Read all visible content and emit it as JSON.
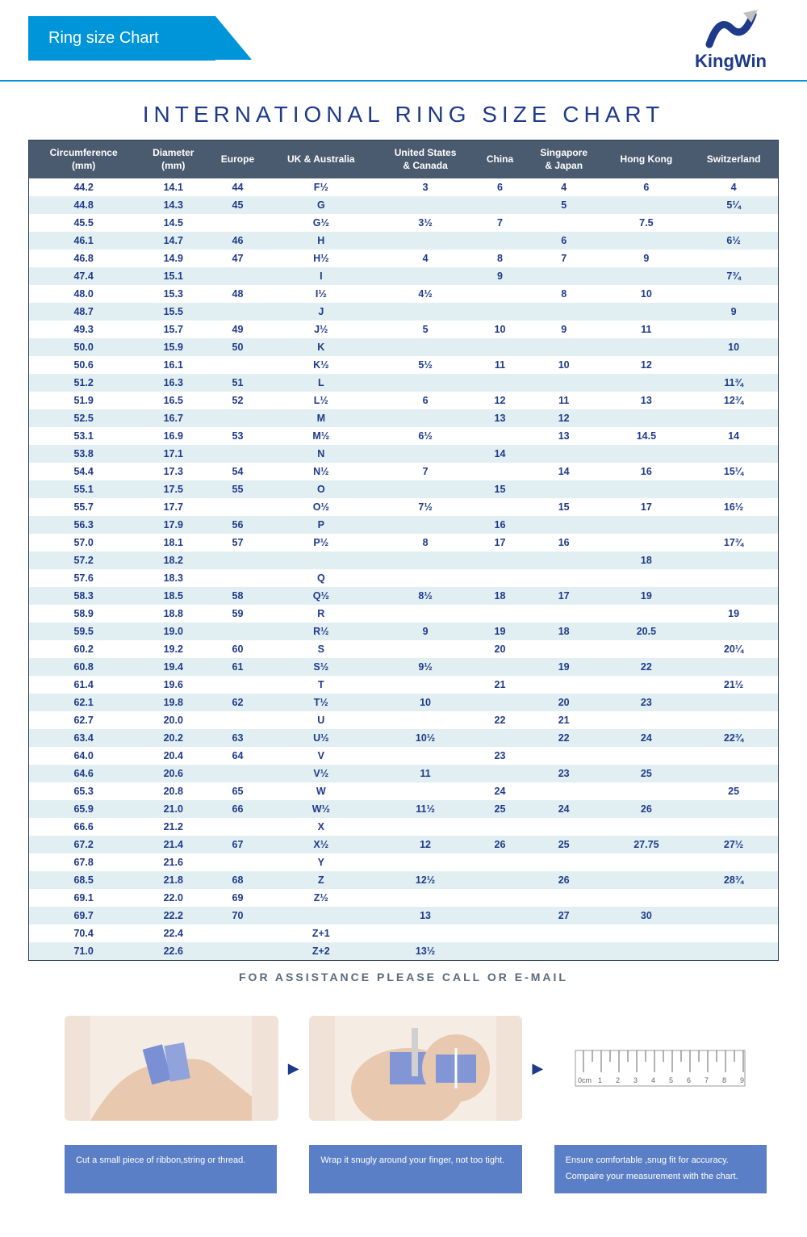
{
  "header": {
    "banner_text": "Ring size Chart",
    "logo_text": "KingWin"
  },
  "title": "INTERNATIONAL RING SIZE CHART",
  "table": {
    "columns": [
      "Circumference (mm)",
      "Diameter (mm)",
      "Europe",
      "UK & Australia",
      "United States & Canada",
      "China",
      "Singapore & Japan",
      "Hong Kong",
      "Switzerland"
    ],
    "rows": [
      [
        "44.2",
        "14.1",
        "44",
        "F½",
        "3",
        "6",
        "4",
        "6",
        "4"
      ],
      [
        "44.8",
        "14.3",
        "45",
        "G",
        "",
        "",
        "5",
        "",
        "5¼"
      ],
      [
        "45.5",
        "14.5",
        "",
        "G½",
        "3½",
        "7",
        "",
        "7.5",
        ""
      ],
      [
        "46.1",
        "14.7",
        "46",
        "H",
        "",
        "",
        "6",
        "",
        "6½"
      ],
      [
        "46.8",
        "14.9",
        "47",
        "H½",
        "4",
        "8",
        "7",
        "9",
        ""
      ],
      [
        "47.4",
        "15.1",
        "",
        "I",
        "",
        "9",
        "",
        "",
        "7¾"
      ],
      [
        "48.0",
        "15.3",
        "48",
        "I½",
        "4½",
        "",
        "8",
        "10",
        ""
      ],
      [
        "48.7",
        "15.5",
        "",
        "J",
        "",
        "",
        "",
        "",
        "9"
      ],
      [
        "49.3",
        "15.7",
        "49",
        "J½",
        "5",
        "10",
        "9",
        "11",
        ""
      ],
      [
        "50.0",
        "15.9",
        "50",
        "K",
        "",
        "",
        "",
        "",
        "10"
      ],
      [
        "50.6",
        "16.1",
        "",
        "K½",
        "5½",
        "11",
        "10",
        "12",
        ""
      ],
      [
        "51.2",
        "16.3",
        "51",
        "L",
        "",
        "",
        "",
        "",
        "11¾"
      ],
      [
        "51.9",
        "16.5",
        "52",
        "L½",
        "6",
        "12",
        "11",
        "13",
        "12¾"
      ],
      [
        "52.5",
        "16.7",
        "",
        "M",
        "",
        "13",
        "12",
        "",
        ""
      ],
      [
        "53.1",
        "16.9",
        "53",
        "M½",
        "6½",
        "",
        "13",
        "14.5",
        "14"
      ],
      [
        "53.8",
        "17.1",
        "",
        "N",
        "",
        "14",
        "",
        "",
        ""
      ],
      [
        "54.4",
        "17.3",
        "54",
        "N½",
        "7",
        "",
        "14",
        "16",
        "15¼"
      ],
      [
        "55.1",
        "17.5",
        "55",
        "O",
        "",
        "15",
        "",
        "",
        ""
      ],
      [
        "55.7",
        "17.7",
        "",
        "O½",
        "7½",
        "",
        "15",
        "17",
        "16½"
      ],
      [
        "56.3",
        "17.9",
        "56",
        "P",
        "",
        "16",
        "",
        "",
        ""
      ],
      [
        "57.0",
        "18.1",
        "57",
        "P½",
        "8",
        "17",
        "16",
        "",
        "17¾"
      ],
      [
        "57.2",
        "18.2",
        "",
        "",
        "",
        "",
        "",
        "18",
        ""
      ],
      [
        "57.6",
        "18.3",
        "",
        "Q",
        "",
        "",
        "",
        "",
        ""
      ],
      [
        "58.3",
        "18.5",
        "58",
        "Q½",
        "8½",
        "18",
        "17",
        "19",
        ""
      ],
      [
        "58.9",
        "18.8",
        "59",
        "R",
        "",
        "",
        "",
        "",
        "19"
      ],
      [
        "59.5",
        "19.0",
        "",
        "R½",
        "9",
        "19",
        "18",
        "20.5",
        ""
      ],
      [
        "60.2",
        "19.2",
        "60",
        "S",
        "",
        "20",
        "",
        "",
        "20¼"
      ],
      [
        "60.8",
        "19.4",
        "61",
        "S½",
        "9½",
        "",
        "19",
        "22",
        ""
      ],
      [
        "61.4",
        "19.6",
        "",
        "T",
        "",
        "21",
        "",
        "",
        "21½"
      ],
      [
        "62.1",
        "19.8",
        "62",
        "T½",
        "10",
        "",
        "20",
        "23",
        ""
      ],
      [
        "62.7",
        "20.0",
        "",
        "U",
        "",
        "22",
        "21",
        "",
        ""
      ],
      [
        "63.4",
        "20.2",
        "63",
        "U½",
        "10½",
        "",
        "22",
        "24",
        "22¾"
      ],
      [
        "64.0",
        "20.4",
        "64",
        "V",
        "",
        "23",
        "",
        "",
        ""
      ],
      [
        "64.6",
        "20.6",
        "",
        "V½",
        "11",
        "",
        "23",
        "25",
        ""
      ],
      [
        "65.3",
        "20.8",
        "65",
        "W",
        "",
        "24",
        "",
        "",
        "25"
      ],
      [
        "65.9",
        "21.0",
        "66",
        "W½",
        "11½",
        "25",
        "24",
        "26",
        ""
      ],
      [
        "66.6",
        "21.2",
        "",
        "X",
        "",
        "",
        "",
        "",
        ""
      ],
      [
        "67.2",
        "21.4",
        "67",
        "X½",
        "12",
        "26",
        "25",
        "27.75",
        "27½"
      ],
      [
        "67.8",
        "21.6",
        "",
        "Y",
        "",
        "",
        "",
        "",
        ""
      ],
      [
        "68.5",
        "21.8",
        "68",
        "Z",
        "12½",
        "",
        "26",
        "",
        "28¾"
      ],
      [
        "69.1",
        "22.0",
        "69",
        "Z½",
        "",
        "",
        "",
        "",
        ""
      ],
      [
        "69.7",
        "22.2",
        "70",
        "",
        "13",
        "",
        "27",
        "30",
        ""
      ],
      [
        "70.4",
        "22.4",
        "",
        "Z+1",
        "",
        "",
        "",
        "",
        ""
      ],
      [
        "71.0",
        "22.6",
        "",
        "Z+2",
        "13½",
        "",
        "",
        "",
        ""
      ]
    ]
  },
  "assist_text": "FOR ASSISTANCE PLEASE CALL OR E-MAIL",
  "captions": {
    "c1": "Cut a small piece of ribbon,string or thread.",
    "c2": "Wrap it snugly around your finger, not too tight.",
    "c3": "Ensure comfortable ,snug fit for accuracy. Compaire your measurement with the chart."
  },
  "colors": {
    "brand_blue": "#0095d9",
    "navy": "#1e3a8a",
    "header_bg": "#4a5a6f",
    "row_alt": "#e1eff2",
    "caption_bg": "#5b7fc7"
  }
}
